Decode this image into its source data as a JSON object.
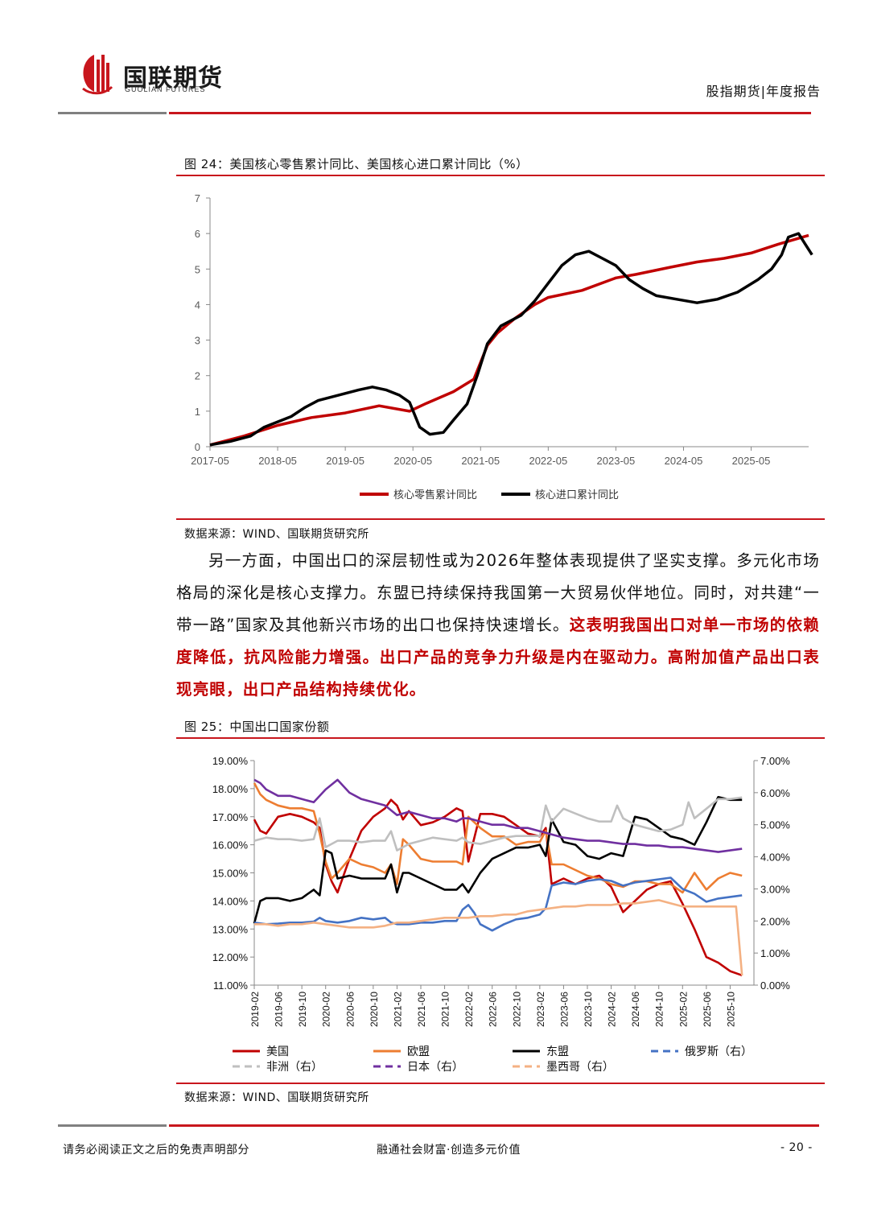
{
  "header": {
    "logo_cn": "国联期货",
    "logo_en": "GUOLIAN FUTURES",
    "report_type": "股指期货|年度报告",
    "brand_red": "#c8161d",
    "line_gray": "#808080"
  },
  "figure24": {
    "title": "图 24：美国核心零售累计同比、美国核心进口累计同比（%）",
    "source": "数据来源：WIND、国联期货研究所",
    "chart_data": {
      "type": "line",
      "title": "美国核心零售累计同比、美国核心进口累计同比（%）",
      "x_ticks": [
        "2017-05",
        "2018-05",
        "2019-05",
        "2020-05",
        "2021-05",
        "2022-05",
        "2023-05",
        "2024-05",
        "2025-05"
      ],
      "y_ticks": [
        "0",
        "1",
        "2",
        "3",
        "4",
        "5",
        "6",
        "7"
      ],
      "ylim": [
        0,
        7
      ],
      "x_unit": "years since 2017-05",
      "series": [
        {
          "name": "核心零售累计同比",
          "color": "#c00000",
          "x": [
            0,
            0.5,
            1,
            1.5,
            2,
            2.5,
            2.95,
            3.2,
            3.6,
            3.9,
            4.1,
            4.25,
            4.5,
            4.8,
            5,
            5.5,
            6,
            6.3,
            6.8,
            7.2,
            7.6,
            8,
            8.4,
            8.85
          ],
          "y": [
            0.05,
            0.3,
            0.6,
            0.82,
            0.95,
            1.15,
            1.0,
            1.22,
            1.55,
            1.9,
            2.85,
            3.2,
            3.6,
            4.0,
            4.2,
            4.4,
            4.75,
            4.85,
            5.05,
            5.2,
            5.3,
            5.45,
            5.7,
            5.95
          ]
        },
        {
          "name": "核心进口累计同比",
          "color": "#000000",
          "x": [
            0,
            0.3,
            0.6,
            0.8,
            1,
            1.2,
            1.4,
            1.6,
            1.8,
            2,
            2.2,
            2.4,
            2.6,
            2.8,
            2.95,
            3.1,
            3.25,
            3.45,
            3.6,
            3.8,
            3.95,
            4.1,
            4.3,
            4.6,
            4.8,
            5,
            5.2,
            5.4,
            5.6,
            5.8,
            6,
            6.2,
            6.4,
            6.6,
            6.9,
            7.2,
            7.5,
            7.8,
            8.1,
            8.3,
            8.45,
            8.55,
            8.7,
            8.8,
            8.9
          ],
          "y": [
            0.05,
            0.15,
            0.3,
            0.55,
            0.7,
            0.85,
            1.1,
            1.3,
            1.4,
            1.5,
            1.6,
            1.68,
            1.6,
            1.45,
            1.25,
            0.55,
            0.35,
            0.4,
            0.75,
            1.2,
            2.0,
            2.9,
            3.4,
            3.7,
            4.1,
            4.6,
            5.1,
            5.4,
            5.5,
            5.3,
            5.1,
            4.7,
            4.45,
            4.25,
            4.15,
            4.05,
            4.15,
            4.35,
            4.7,
            5.0,
            5.4,
            5.9,
            6.0,
            5.7,
            5.4
          ]
        }
      ],
      "legend_position": "bottom"
    }
  },
  "paragraph": {
    "normal": "另一方面，中国出口的深层韧性或为2026年整体表现提供了坚实支撑。多元化市场格局的深化是核心支撑力。东盟已持续保持我国第一大贸易伙伴地位。同时，对共建“一带一路”国家及其他新兴市场的出口也保持快速增长。",
    "highlight": "这表明我国出口对单一市场的依赖度降低，抗风险能力增强。出口产品的竞争力升级是内在驱动力。高附加值产品出口表现亮眼，出口产品结构持续优化。"
  },
  "figure25": {
    "title": "图 25：中国出口国家份额",
    "source": "数据来源：WIND、国联期货研究所",
    "chart_data": {
      "type": "line",
      "title": "中国出口国家份额",
      "x_ticks": [
        "2019-02",
        "2019-06",
        "2019-10",
        "2020-02",
        "2020-06",
        "2020-10",
        "2021-02",
        "2021-06",
        "2021-10",
        "2022-02",
        "2022-06",
        "2022-10",
        "2023-02",
        "2023-06",
        "2023-10",
        "2024-02",
        "2024-06",
        "2024-10",
        "2025-02",
        "2025-06",
        "2025-10"
      ],
      "x_unit": "months since 2019-02",
      "left_ticks": [
        "19.00%",
        "18.00%",
        "17.00%",
        "16.00%",
        "15.00%",
        "14.00%",
        "13.00%",
        "12.00%",
        "11.00%"
      ],
      "right_ticks": [
        "7.00%",
        "6.00%",
        "5.00%",
        "4.00%",
        "3.00%",
        "2.00%",
        "1.00%",
        "0.00%"
      ],
      "left_range": [
        11,
        19
      ],
      "right_range": [
        0,
        7
      ],
      "series": [
        {
          "name": "美国",
          "axis": "left",
          "color": "#c00000",
          "dash": false,
          "x": [
            0,
            1,
            2,
            4,
            6,
            8,
            10,
            11,
            12,
            13,
            14,
            16,
            18,
            20,
            22,
            23,
            24,
            25,
            26,
            28,
            30,
            32,
            34,
            35,
            36,
            38,
            40,
            42,
            44,
            46,
            48,
            49,
            50,
            52,
            54,
            56,
            58,
            60,
            62,
            64,
            66,
            68,
            70,
            72,
            74,
            76,
            78,
            80,
            82
          ],
          "y": [
            16.9,
            16.5,
            16.4,
            17.0,
            17.1,
            17.0,
            16.8,
            16.6,
            15.3,
            14.7,
            14.3,
            15.5,
            16.5,
            17.0,
            17.3,
            17.6,
            17.4,
            16.9,
            17.2,
            16.7,
            16.8,
            17.0,
            17.3,
            17.2,
            15.4,
            17.1,
            17.1,
            17.0,
            16.7,
            16.4,
            16.3,
            16.6,
            14.6,
            14.8,
            14.6,
            14.8,
            14.9,
            14.5,
            13.6,
            14.0,
            14.4,
            14.6,
            14.7,
            13.9,
            13.0,
            12.0,
            11.8,
            11.5,
            11.35
          ]
        },
        {
          "name": "欧盟",
          "axis": "left",
          "color": "#ed7d31",
          "dash": false,
          "x": [
            0,
            1,
            2,
            4,
            6,
            8,
            10,
            11,
            12,
            13,
            14,
            16,
            18,
            20,
            22,
            23,
            24,
            25,
            26,
            28,
            30,
            32,
            34,
            35,
            36,
            38,
            40,
            42,
            44,
            46,
            48,
            49,
            50,
            52,
            54,
            56,
            58,
            60,
            62,
            64,
            66,
            68,
            70,
            72,
            74,
            76,
            78,
            80,
            82
          ],
          "y": [
            18.2,
            17.8,
            17.6,
            17.4,
            17.3,
            17.3,
            17.2,
            16.4,
            15.4,
            14.8,
            15.0,
            15.5,
            15.3,
            15.2,
            15.0,
            15.3,
            14.6,
            16.2,
            16.0,
            15.5,
            15.4,
            15.4,
            15.4,
            15.3,
            17.0,
            16.6,
            16.3,
            16.3,
            16.0,
            16.1,
            16.1,
            16.5,
            15.3,
            15.3,
            15.1,
            14.9,
            14.8,
            14.6,
            14.5,
            14.7,
            14.7,
            14.6,
            14.6,
            14.3,
            15.0,
            14.4,
            14.8,
            15.0,
            14.9
          ]
        },
        {
          "name": "东盟",
          "axis": "left",
          "color": "#000000",
          "dash": false,
          "x": [
            0,
            1,
            2,
            4,
            6,
            8,
            10,
            11,
            12,
            13,
            14,
            16,
            18,
            20,
            22,
            23,
            24,
            25,
            26,
            28,
            30,
            32,
            34,
            35,
            36,
            38,
            40,
            42,
            44,
            46,
            48,
            49,
            50,
            52,
            54,
            56,
            58,
            60,
            62,
            64,
            66,
            68,
            70,
            72,
            74,
            76,
            78,
            80,
            82
          ],
          "y": [
            13.2,
            14.0,
            14.1,
            14.1,
            14.0,
            14.1,
            14.4,
            14.2,
            15.8,
            15.7,
            14.8,
            14.9,
            14.8,
            14.8,
            14.8,
            15.3,
            14.3,
            15.0,
            15.0,
            14.8,
            14.6,
            14.4,
            14.4,
            14.6,
            14.3,
            15.0,
            15.5,
            15.7,
            15.9,
            15.9,
            16.0,
            15.6,
            16.9,
            16.1,
            16.0,
            15.6,
            15.5,
            15.7,
            15.6,
            17.0,
            16.9,
            16.6,
            16.3,
            16.2,
            16.0,
            16.8,
            17.7,
            17.6,
            17.6
          ]
        },
        {
          "name": "俄罗斯（右）",
          "axis": "right",
          "color": "#4472c4",
          "dash": true,
          "x": [
            0,
            2,
            4,
            6,
            8,
            10,
            11,
            12,
            14,
            16,
            18,
            20,
            22,
            23,
            24,
            26,
            28,
            30,
            32,
            34,
            35,
            36,
            37,
            38,
            40,
            42,
            44,
            46,
            48,
            49,
            50,
            52,
            54,
            56,
            58,
            60,
            62,
            64,
            66,
            68,
            70,
            72,
            74,
            76,
            78,
            80,
            82
          ],
          "y": [
            1.95,
            1.9,
            1.92,
            1.95,
            1.95,
            1.98,
            2.1,
            2.0,
            1.95,
            2.0,
            2.1,
            2.05,
            2.1,
            1.95,
            1.9,
            1.9,
            1.95,
            1.95,
            2.0,
            2.0,
            2.35,
            2.5,
            2.25,
            1.9,
            1.7,
            1.9,
            2.05,
            2.1,
            2.2,
            2.4,
            3.1,
            3.2,
            3.15,
            3.25,
            3.3,
            3.25,
            3.1,
            3.2,
            3.25,
            3.3,
            3.35,
            3.0,
            2.85,
            2.6,
            2.7,
            2.75,
            2.8
          ]
        },
        {
          "name": "非洲（右）",
          "axis": "right",
          "color": "#bfbfbf",
          "dash": true,
          "x": [
            0,
            2,
            4,
            6,
            8,
            10,
            11,
            12,
            14,
            16,
            18,
            20,
            22,
            23,
            24,
            26,
            28,
            30,
            32,
            34,
            35,
            36,
            38,
            40,
            42,
            44,
            46,
            48,
            49,
            50,
            52,
            54,
            56,
            58,
            60,
            61,
            62,
            64,
            66,
            68,
            70,
            72,
            73,
            74,
            76,
            78,
            80,
            82
          ],
          "y": [
            4.5,
            4.6,
            4.55,
            4.55,
            4.5,
            4.55,
            5.2,
            4.3,
            4.5,
            4.5,
            4.45,
            4.5,
            4.5,
            4.8,
            4.2,
            4.4,
            4.5,
            4.6,
            4.55,
            4.5,
            4.6,
            4.45,
            4.4,
            4.5,
            4.6,
            4.65,
            4.65,
            4.65,
            5.6,
            5.1,
            5.5,
            5.35,
            5.2,
            5.1,
            5.1,
            5.6,
            5.2,
            5.0,
            4.9,
            4.8,
            4.85,
            5.0,
            5.7,
            5.2,
            5.5,
            5.8,
            5.8,
            5.85
          ]
        },
        {
          "name": "日本（右）",
          "axis": "right",
          "color": "#7030a0",
          "dash": true,
          "x": [
            0,
            1,
            2,
            4,
            6,
            8,
            10,
            12,
            14,
            16,
            18,
            20,
            22,
            24,
            26,
            28,
            30,
            32,
            34,
            35,
            36,
            38,
            40,
            42,
            44,
            46,
            48,
            50,
            52,
            54,
            56,
            58,
            60,
            62,
            64,
            66,
            68,
            70,
            72,
            74,
            76,
            78,
            80,
            82
          ],
          "y": [
            6.4,
            6.3,
            6.1,
            5.9,
            5.9,
            5.8,
            5.7,
            6.1,
            6.4,
            6.0,
            5.8,
            5.7,
            5.6,
            5.3,
            5.4,
            5.3,
            5.2,
            5.2,
            5.1,
            5.2,
            5.2,
            5.1,
            5.0,
            5.0,
            4.9,
            4.9,
            4.8,
            4.7,
            4.6,
            4.55,
            4.5,
            4.5,
            4.45,
            4.4,
            4.4,
            4.35,
            4.35,
            4.3,
            4.3,
            4.25,
            4.2,
            4.15,
            4.2,
            4.25
          ]
        },
        {
          "name": "墨西哥（右）",
          "axis": "right",
          "color": "#f4b183",
          "dash": true,
          "x": [
            0,
            2,
            4,
            6,
            8,
            10,
            12,
            14,
            16,
            18,
            20,
            22,
            24,
            26,
            28,
            30,
            32,
            34,
            36,
            38,
            40,
            42,
            44,
            46,
            48,
            50,
            52,
            54,
            56,
            58,
            60,
            62,
            64,
            66,
            68,
            70,
            72,
            74,
            76,
            78,
            80,
            81,
            82
          ],
          "y": [
            1.9,
            1.9,
            1.85,
            1.9,
            1.9,
            1.95,
            1.9,
            1.85,
            1.8,
            1.8,
            1.8,
            1.85,
            1.95,
            1.95,
            2.0,
            2.05,
            2.1,
            2.1,
            2.1,
            2.15,
            2.15,
            2.2,
            2.2,
            2.3,
            2.35,
            2.4,
            2.45,
            2.45,
            2.5,
            2.5,
            2.5,
            2.55,
            2.55,
            2.6,
            2.65,
            2.55,
            2.45,
            2.45,
            2.45,
            2.45,
            2.45,
            2.45,
            0.3
          ]
        }
      ],
      "legend_position": "bottom"
    }
  },
  "footer": {
    "disclaimer": "请务必阅读正文之后的免责声明部分",
    "slogan": "融通社会财富·创造多元价值",
    "page": "- 20 -"
  }
}
